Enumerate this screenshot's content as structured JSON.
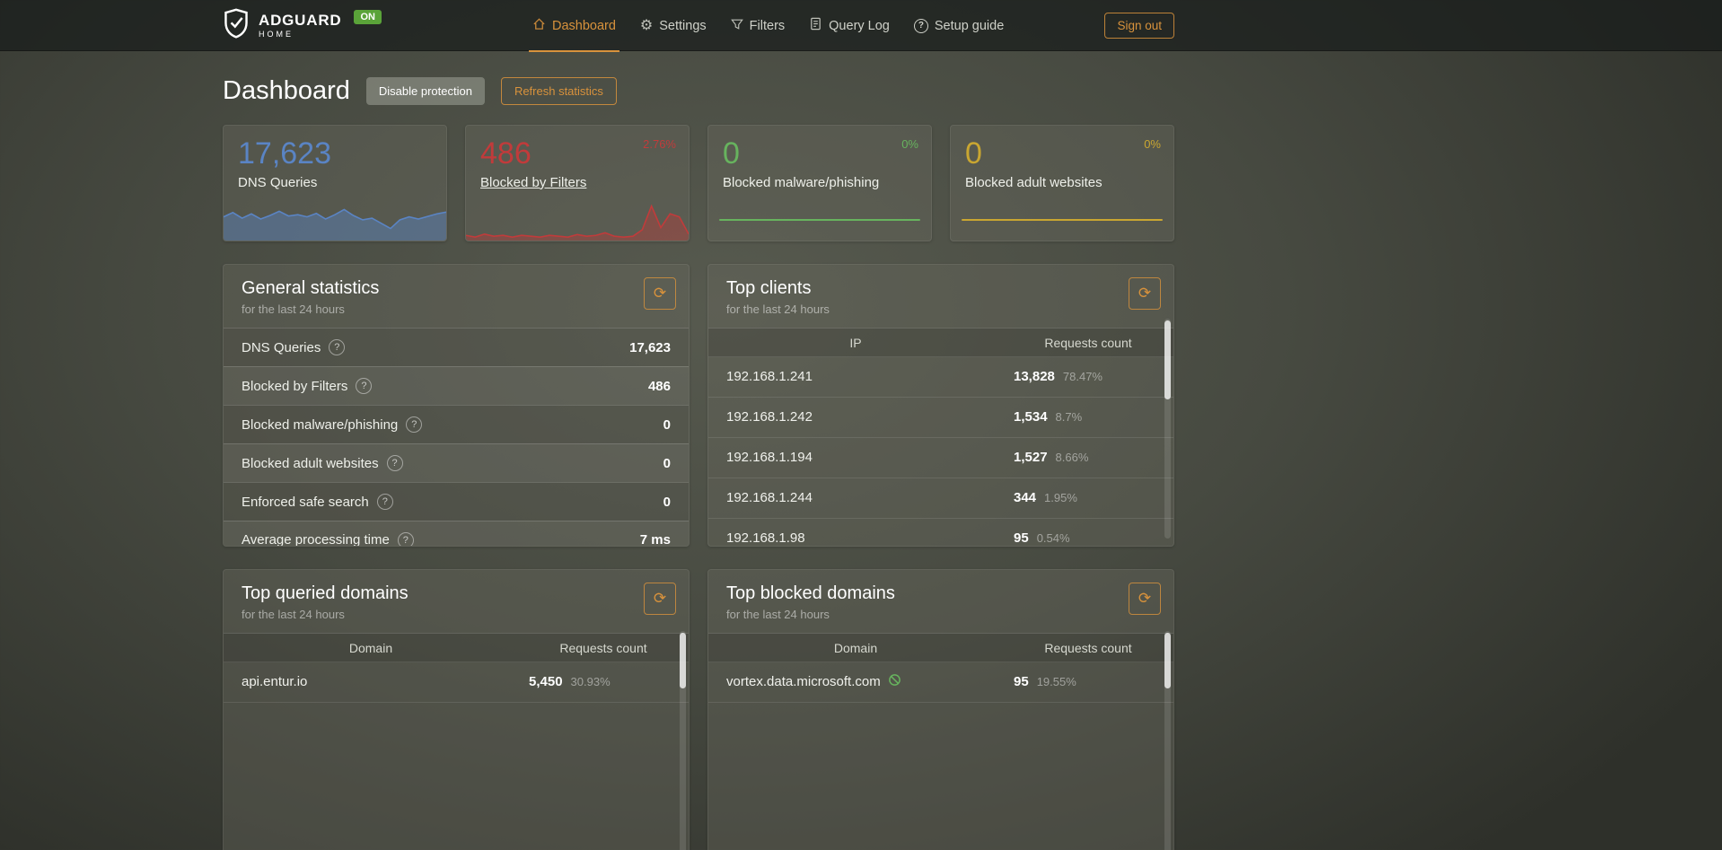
{
  "colors": {
    "accent": "#d8923c",
    "blue": "#5a84c4",
    "red": "#c13b3b",
    "green": "#67b35e",
    "yellow": "#c9a631",
    "bar_green": "#67b279",
    "bar_red": "#c53030",
    "bar_track": "#f2f3ef"
  },
  "header": {
    "brand": {
      "title": "ADGUARD",
      "subtitle": "HOME",
      "status_badge": "ON"
    },
    "nav": [
      {
        "label": "Dashboard"
      },
      {
        "label": "Settings"
      },
      {
        "label": "Filters"
      },
      {
        "label": "Query Log"
      },
      {
        "label": "Setup guide"
      }
    ],
    "sign_out": "Sign out"
  },
  "page": {
    "title": "Dashboard",
    "disable_protection": "Disable protection",
    "refresh_statistics": "Refresh statistics"
  },
  "stat_cards": [
    {
      "value": "17,623",
      "label": "DNS Queries",
      "delta": "",
      "spark": [
        55,
        65,
        52,
        62,
        50,
        58,
        68,
        57,
        60,
        55,
        63,
        50,
        60,
        72,
        58,
        48,
        52,
        40,
        28,
        48,
        55,
        50,
        56,
        62,
        66
      ]
    },
    {
      "value": "486",
      "label": "Blocked by Filters",
      "delta": "2.76%",
      "spark": [
        12,
        8,
        15,
        10,
        12,
        8,
        12,
        10,
        8,
        12,
        10,
        8,
        14,
        10,
        12,
        18,
        10,
        8,
        10,
        25,
        80,
        30,
        62,
        55,
        15
      ]
    },
    {
      "value": "0",
      "label": "Blocked malware/phishing",
      "delta": "0%"
    },
    {
      "value": "0",
      "label": "Blocked adult websites",
      "delta": "0%"
    }
  ],
  "general_stats": {
    "title": "General statistics",
    "subtitle": "for the last 24 hours",
    "rows": [
      {
        "label": "DNS Queries",
        "value": "17,623"
      },
      {
        "label": "Blocked by Filters",
        "value": "486"
      },
      {
        "label": "Blocked malware/phishing",
        "value": "0"
      },
      {
        "label": "Blocked adult websites",
        "value": "0"
      },
      {
        "label": "Enforced safe search",
        "value": "0"
      },
      {
        "label": "Average processing time",
        "value": "7 ms"
      }
    ]
  },
  "top_clients": {
    "title": "Top clients",
    "subtitle": "for the last 24 hours",
    "columns": [
      "IP",
      "Requests count"
    ],
    "rows": [
      {
        "ip": "192.168.1.241",
        "count": "13,828",
        "percent": "78.47%",
        "bar": 78.47,
        "bar_color": "#67b279"
      },
      {
        "ip": "192.168.1.242",
        "count": "1,534",
        "percent": "8.7%",
        "bar": 8.7,
        "bar_color": "#c53030"
      },
      {
        "ip": "192.168.1.194",
        "count": "1,527",
        "percent": "8.66%",
        "bar": 8.66,
        "bar_color": "#c53030"
      },
      {
        "ip": "192.168.1.244",
        "count": "344",
        "percent": "1.95%",
        "bar": 1.95,
        "bar_color": "#c53030"
      },
      {
        "ip": "192.168.1.98",
        "count": "95",
        "percent": "0.54%",
        "bar": 0.54,
        "bar_color": "#c53030"
      }
    ]
  },
  "top_queried_domains": {
    "title": "Top queried domains",
    "subtitle": "for the last 24 hours",
    "columns": [
      "Domain",
      "Requests count"
    ],
    "rows": [
      {
        "domain": "api.entur.io",
        "count": "5,450",
        "percent": "30.93%",
        "bar": 30.93,
        "bar_color": "#c53030"
      }
    ]
  },
  "top_blocked_domains": {
    "title": "Top blocked domains",
    "subtitle": "for the last 24 hours",
    "columns": [
      "Domain",
      "Requests count"
    ],
    "rows": [
      {
        "domain": "vortex.data.microsoft.com",
        "count": "95",
        "percent": "19.55%",
        "bar": 19.55,
        "bar_color": "#c53030"
      }
    ]
  }
}
